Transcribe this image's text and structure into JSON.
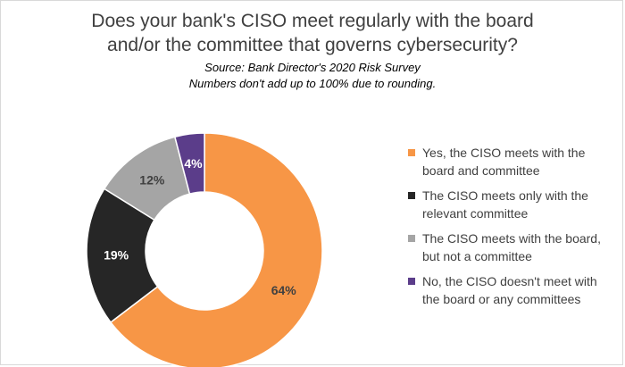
{
  "chart_data": {
    "type": "pie",
    "title_lines": [
      "Does your bank's CISO meet regularly with the board",
      "and/or the committee that governs cybersecurity?"
    ],
    "subtitle_lines": [
      "Source: Bank Director's 2020 Risk Survey",
      "Numbers don't add up to 100% due to rounding."
    ],
    "legend_position": "right",
    "slices": [
      {
        "label": "Yes, the CISO meets with the board and committee",
        "legend_lines": [
          "Yes, the CISO meets with the",
          "board and committee"
        ],
        "value": 64,
        "data_label": "64%",
        "color": "#F79646",
        "label_color": "#404040"
      },
      {
        "label": "The CISO meets only with the relevant committee",
        "legend_lines": [
          "The CISO meets only with the",
          "relevant committee"
        ],
        "value": 19,
        "data_label": "19%",
        "color": "#262626",
        "label_color": "#ffffff"
      },
      {
        "label": "The CISO meets with the board, but not a committee",
        "legend_lines": [
          "The CISO meets with the board,",
          "but not a committee"
        ],
        "value": 12,
        "data_label": "12%",
        "color": "#A5A5A5",
        "label_color": "#404040"
      },
      {
        "label": "No, the CISO doesn't meet with the board or any committees",
        "legend_lines": [
          "No, the CISO doesn't meet with",
          "the board or any committees"
        ],
        "value": 4,
        "data_label": "4%",
        "color": "#5B3D8A",
        "label_color": "#ffffff"
      }
    ]
  }
}
